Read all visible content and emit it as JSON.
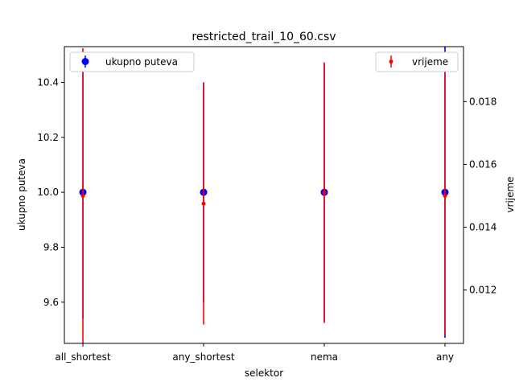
{
  "chart_data": {
    "type": "scatter",
    "title": "restricted_trail_10_60.csv",
    "xlabel": "selektor",
    "ylabel_left": "ukupno puteva",
    "ylabel_right": "vrijeme",
    "categories": [
      "all_shortest",
      "any_shortest",
      "nema",
      "any"
    ],
    "left_axis": {
      "ylim": [
        9.45,
        10.53
      ],
      "ticks": [
        "9.6",
        "9.8",
        "10.0",
        "10.2",
        "10.4"
      ]
    },
    "right_axis": {
      "ylim": [
        0.0103,
        0.01975
      ],
      "ticks": [
        "0.012",
        "0.014",
        "0.016",
        "0.018"
      ]
    },
    "series": [
      {
        "name": "ukupno puteva",
        "axis": "left",
        "color": "#0000ff",
        "marker": "circle",
        "values": [
          10.0,
          10.0,
          10.0,
          10.0
        ],
        "errors": [
          0.46,
          0.4,
          0.47,
          0.53
        ]
      },
      {
        "name": "vrijeme",
        "axis": "right",
        "color": "#ff0000",
        "marker": "dot",
        "values": [
          0.015,
          0.01475,
          0.0151,
          0.015
        ],
        "errors": [
          0.0047,
          0.00385,
          0.00415,
          0.0044
        ]
      }
    ],
    "legends": [
      {
        "position": "top-left",
        "entries": [
          "ukupno puteva"
        ]
      },
      {
        "position": "top-right",
        "entries": [
          "vrijeme"
        ]
      }
    ],
    "grid": false
  }
}
